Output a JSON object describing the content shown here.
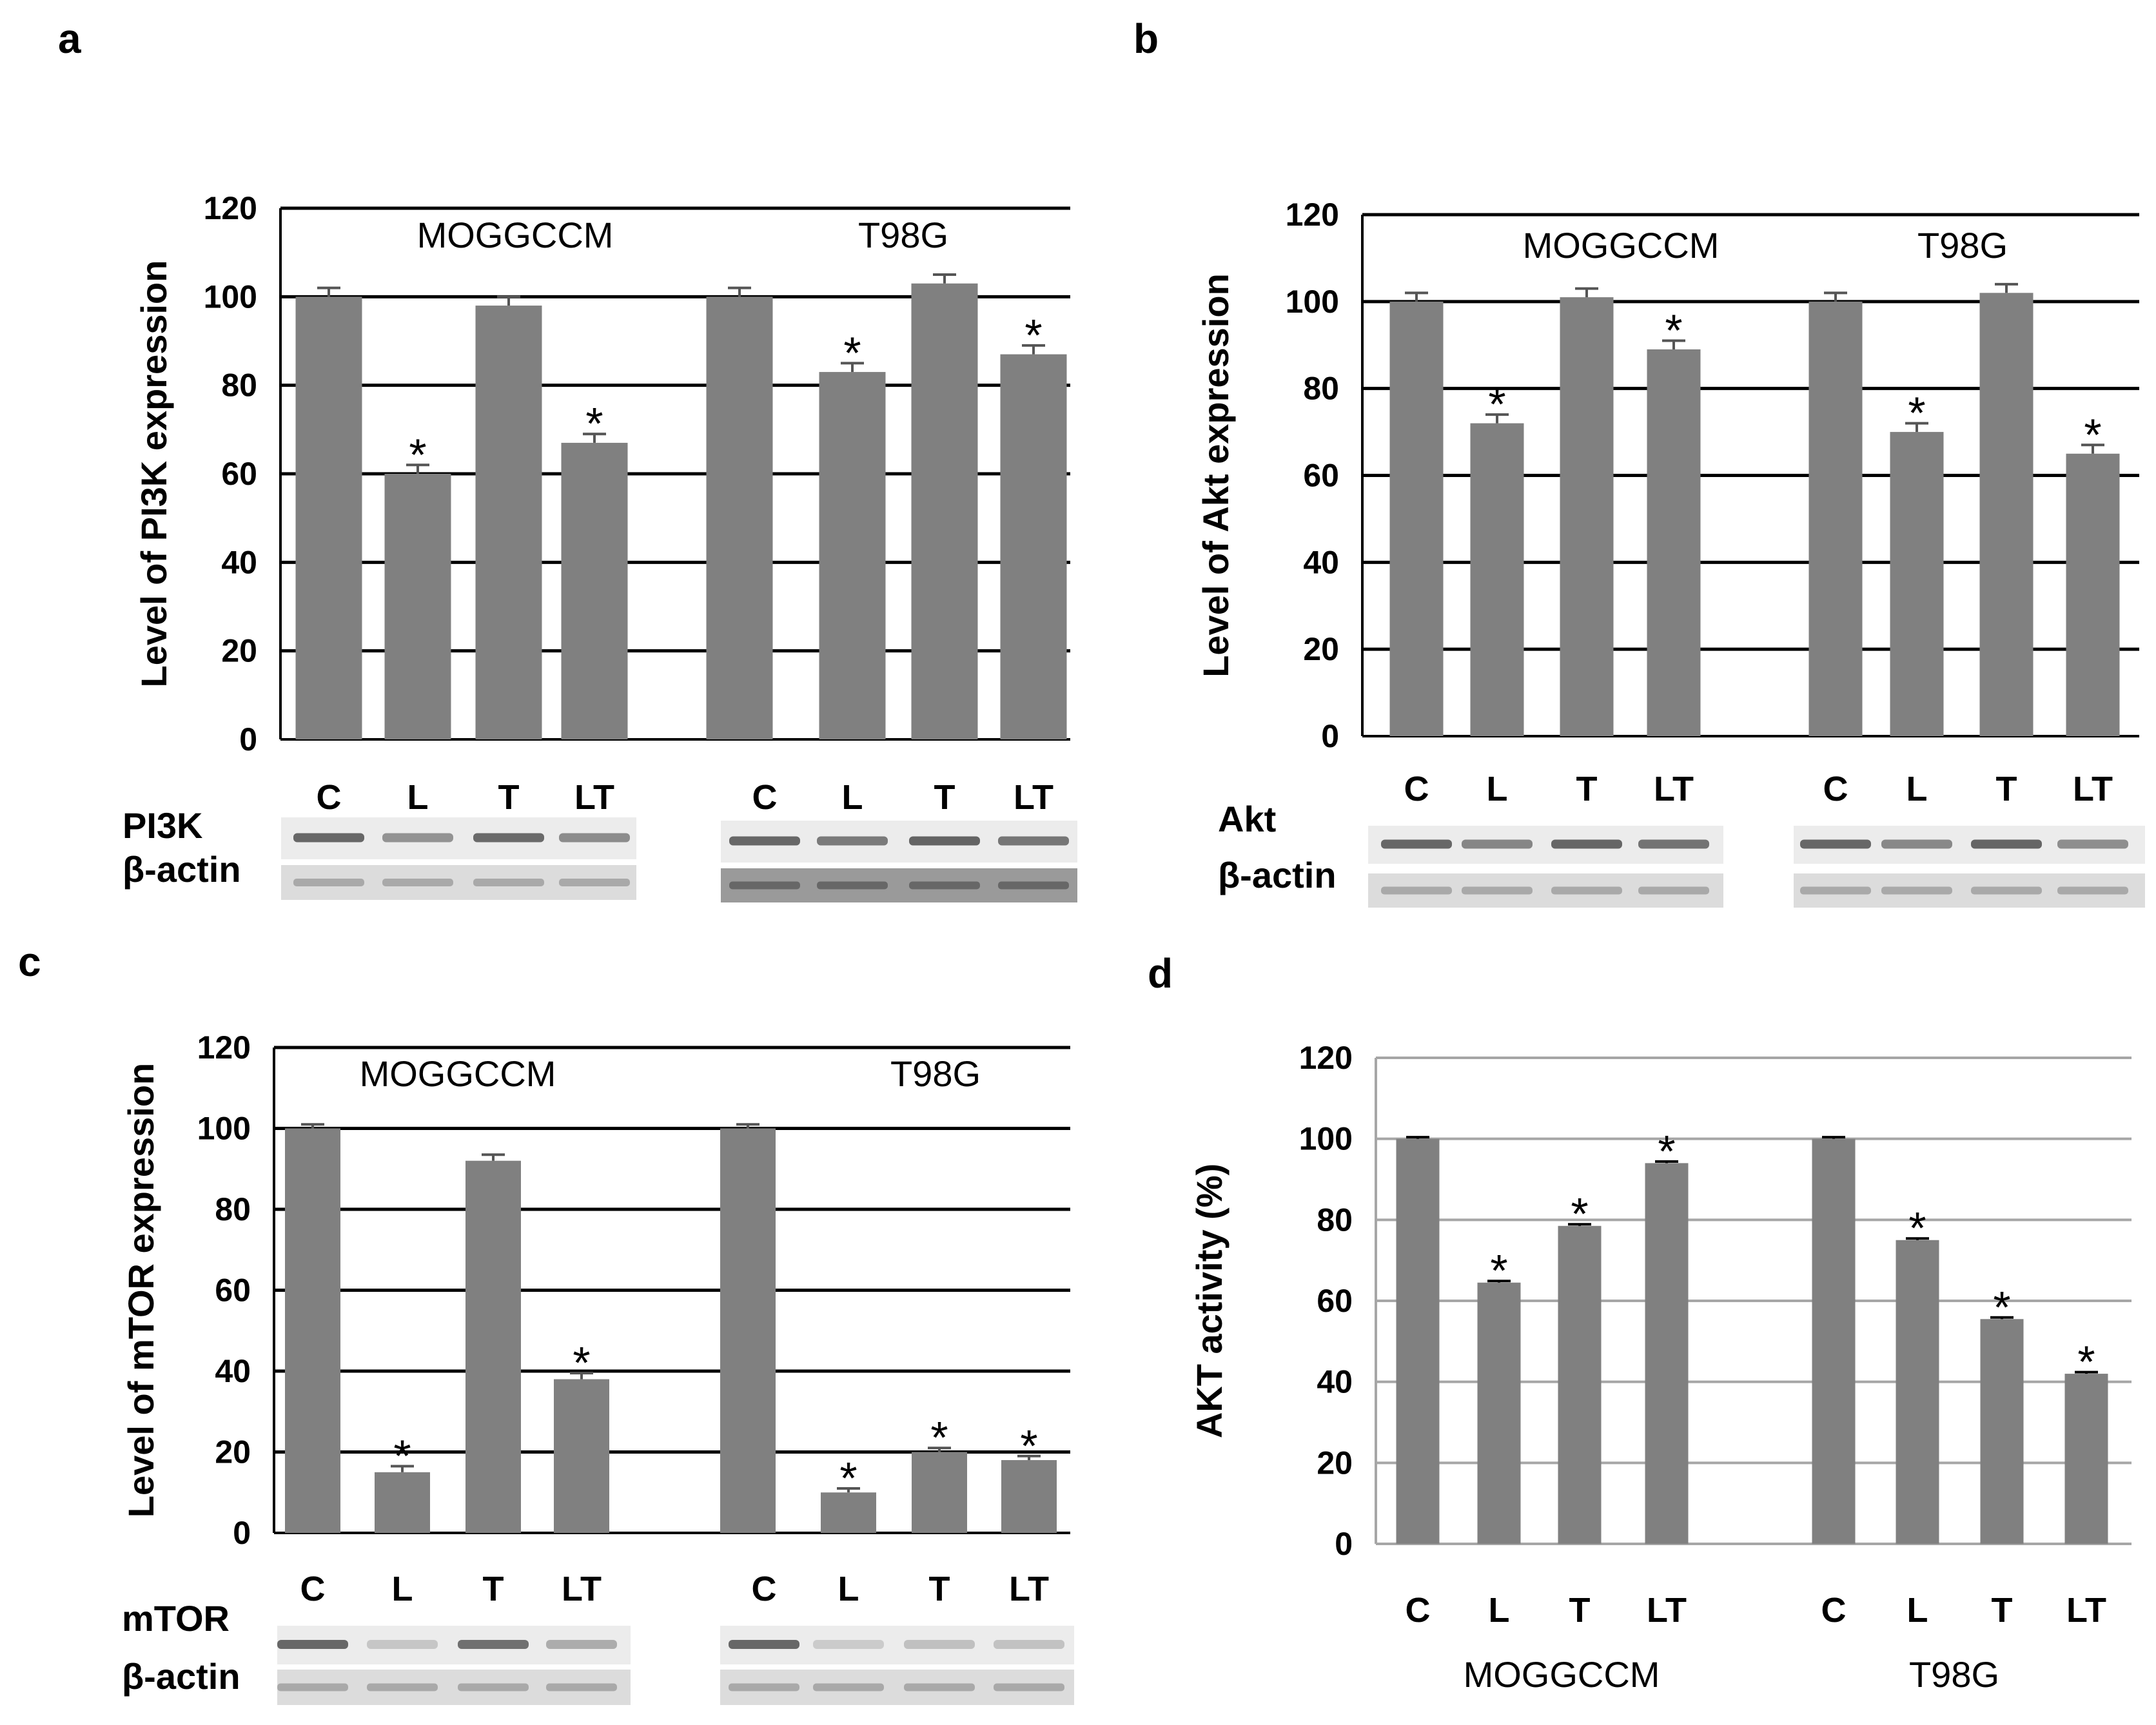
{
  "panels": [
    {
      "letter": "a",
      "chart_data": {
        "type": "bar",
        "title": "",
        "ylabel": "Level of PI3K expression",
        "xlabel": "",
        "ylim": [
          0,
          120
        ],
        "yticks": [
          "0",
          "20",
          "40",
          "60",
          "80",
          "100",
          "120"
        ],
        "grid": true,
        "groups": [
          {
            "name": "MOGGCCM",
            "categories": [
              "C",
              "L",
              "T",
              "LT"
            ],
            "values": [
              100,
              60,
              98,
              67
            ],
            "errors": [
              2,
              2,
              2,
              2
            ],
            "significant": [
              false,
              true,
              false,
              true
            ]
          },
          {
            "name": "T98G",
            "categories": [
              "C",
              "L",
              "T",
              "LT"
            ],
            "values": [
              100,
              83,
              103,
              87
            ],
            "errors": [
              2,
              2,
              2,
              2
            ],
            "significant": [
              false,
              true,
              false,
              true
            ]
          }
        ]
      },
      "blot": {
        "protein": "PI3K",
        "loading": "β-actin"
      }
    },
    {
      "letter": "b",
      "chart_data": {
        "type": "bar",
        "title": "",
        "ylabel": "Level of Akt expression",
        "xlabel": "",
        "ylim": [
          0,
          120
        ],
        "yticks": [
          "0",
          "20",
          "40",
          "60",
          "80",
          "100",
          "120"
        ],
        "grid": true,
        "groups": [
          {
            "name": "MOGGCCM",
            "categories": [
              "C",
              "L",
              "T",
              "LT"
            ],
            "values": [
              100,
              72,
              101,
              89
            ],
            "errors": [
              2,
              2,
              2,
              2
            ],
            "significant": [
              false,
              true,
              false,
              true
            ]
          },
          {
            "name": "T98G",
            "categories": [
              "C",
              "L",
              "T",
              "LT"
            ],
            "values": [
              100,
              70,
              102,
              65
            ],
            "errors": [
              2,
              2,
              2,
              2
            ],
            "significant": [
              false,
              true,
              false,
              true
            ]
          }
        ]
      },
      "blot": {
        "protein": "Akt",
        "loading": "β-actin"
      }
    },
    {
      "letter": "c",
      "chart_data": {
        "type": "bar",
        "title": "",
        "ylabel": "Level of mTOR expression",
        "xlabel": "",
        "ylim": [
          0,
          120
        ],
        "yticks": [
          "0",
          "20",
          "40",
          "60",
          "80",
          "100",
          "120"
        ],
        "grid": true,
        "groups": [
          {
            "name": "MOGGCCM",
            "categories": [
              "C",
              "L",
              "T",
              "LT"
            ],
            "values": [
              100,
              15,
              92,
              38
            ],
            "errors": [
              1,
              1.5,
              1.5,
              1.5
            ],
            "significant": [
              false,
              true,
              false,
              true
            ]
          },
          {
            "name": "T98G",
            "categories": [
              "C",
              "L",
              "T",
              "LT"
            ],
            "values": [
              100,
              10,
              20,
              18
            ],
            "errors": [
              1,
              1,
              1,
              1
            ],
            "significant": [
              false,
              true,
              true,
              true
            ]
          }
        ]
      },
      "blot": {
        "protein": "mTOR",
        "loading": "β-actin"
      }
    },
    {
      "letter": "d",
      "chart_data": {
        "type": "bar",
        "title": "",
        "ylabel": "AKT activity (%)",
        "xlabel": "",
        "ylim": [
          0,
          120
        ],
        "yticks": [
          "0",
          "20",
          "40",
          "60",
          "80",
          "100",
          "120"
        ],
        "grid": true,
        "groups": [
          {
            "name": "MOGGCCM",
            "categories": [
              "C",
              "L",
              "T",
              "LT"
            ],
            "values": [
              100,
              64.5,
              78.5,
              94
            ],
            "errors": [
              0.4,
              0.4,
              0.4,
              0.4
            ],
            "significant": [
              false,
              true,
              true,
              true
            ]
          },
          {
            "name": "T98G",
            "categories": [
              "C",
              "L",
              "T",
              "LT"
            ],
            "values": [
              100,
              75,
              55.5,
              42
            ],
            "errors": [
              0.4,
              0.4,
              0.4,
              0.4
            ],
            "significant": [
              false,
              true,
              true,
              true
            ]
          }
        ]
      }
    }
  ],
  "significance_marker": "*",
  "colors": {
    "bar": "#808080",
    "grid": "#000000",
    "grid_d": "#a6a6a6"
  }
}
